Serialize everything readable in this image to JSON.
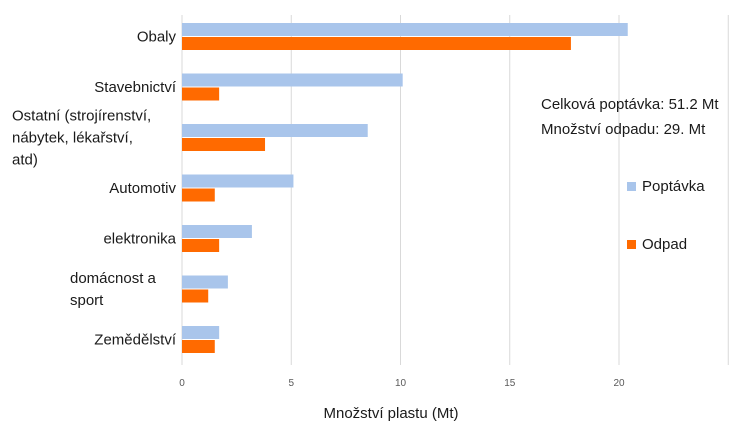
{
  "chart_data": {
    "type": "bar",
    "orientation": "horizontal",
    "categories": [
      [
        "Obaly"
      ],
      [
        "Stavebnictví"
      ],
      [
        "Ostatní (strojírenství,",
        "nábytek, lékařství,",
        "atd)"
      ],
      [
        "Automotiv"
      ],
      [
        "elektronika"
      ],
      [
        "domácnost a",
        "sport"
      ],
      [
        "Zemědělství"
      ]
    ],
    "series": [
      {
        "name": "Poptávka",
        "color": "#a9c5eb",
        "values": [
          20.4,
          10.1,
          8.5,
          5.1,
          3.2,
          2.1,
          1.7
        ]
      },
      {
        "name": "Odpad",
        "color": "#ff6a00",
        "values": [
          17.8,
          1.7,
          3.8,
          1.5,
          1.7,
          1.2,
          1.5
        ]
      }
    ],
    "xlabel": "Množství plastu (Mt)",
    "xlim": [
      0,
      25
    ],
    "xticks": [
      0,
      5,
      10,
      15,
      20
    ],
    "grid": true,
    "legend_position": "right"
  },
  "annotations": [
    "Celková poptávka: 51.2 Mt",
    "Množství odpadu: 29. Mt"
  ]
}
